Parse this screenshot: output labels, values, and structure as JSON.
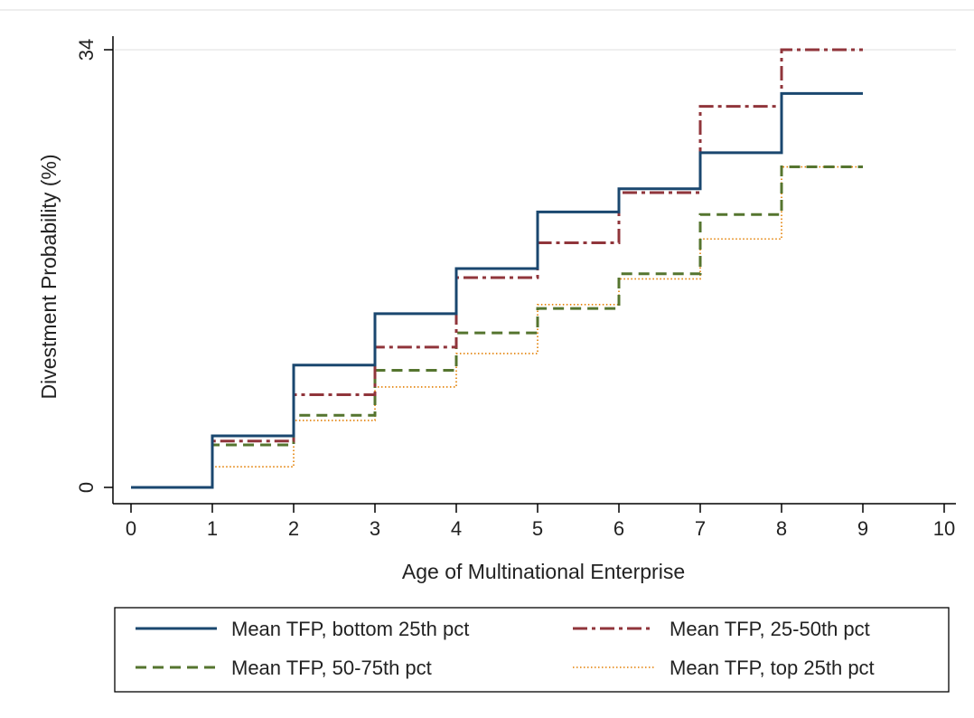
{
  "chart_data": {
    "type": "line",
    "step": true,
    "xlabel": "Age of Multinational Enterprise",
    "ylabel": "Divestment Probability (%)",
    "xlim": [
      0,
      10
    ],
    "ylim": [
      0,
      34
    ],
    "xticks": [
      "0",
      "1",
      "2",
      "3",
      "4",
      "5",
      "6",
      "7",
      "8",
      "9",
      "10"
    ],
    "yticks": [
      "0",
      "34"
    ],
    "grid": "horizontal at y=34",
    "legend_position": "bottom",
    "series": [
      {
        "name": "Mean TFP, bottom 25th pct",
        "color": "#1a476f",
        "dash": "solid",
        "x": [
          0,
          1,
          2,
          3,
          4,
          5,
          6,
          7,
          8,
          9
        ],
        "y": [
          0,
          4.0,
          9.5,
          13.5,
          17.0,
          21.4,
          23.2,
          26.0,
          30.6,
          30.6
        ]
      },
      {
        "name": "Mean TFP, 25-50th pct",
        "color": "#90353b",
        "dash": "dashdot",
        "x": [
          0,
          1,
          2,
          3,
          4,
          5,
          6,
          7,
          8,
          9
        ],
        "y": [
          0,
          3.6,
          7.2,
          10.9,
          16.3,
          19.0,
          22.9,
          29.6,
          34.0,
          34.0
        ]
      },
      {
        "name": "Mean TFP, 50-75th pct",
        "color": "#55752f",
        "dash": "dash",
        "x": [
          0,
          1,
          2,
          3,
          4,
          5,
          6,
          7,
          8,
          9
        ],
        "y": [
          0,
          3.3,
          5.6,
          9.1,
          12.0,
          13.9,
          16.6,
          21.2,
          24.9,
          24.9
        ]
      },
      {
        "name": "Mean TFP, top 25th pct",
        "color": "#e37e00",
        "dash": "dot",
        "x": [
          0,
          1,
          2,
          3,
          4,
          5,
          6,
          7,
          8,
          9
        ],
        "y": [
          0,
          1.6,
          5.2,
          7.8,
          10.4,
          14.2,
          16.2,
          19.3,
          24.9,
          24.9
        ]
      }
    ]
  }
}
